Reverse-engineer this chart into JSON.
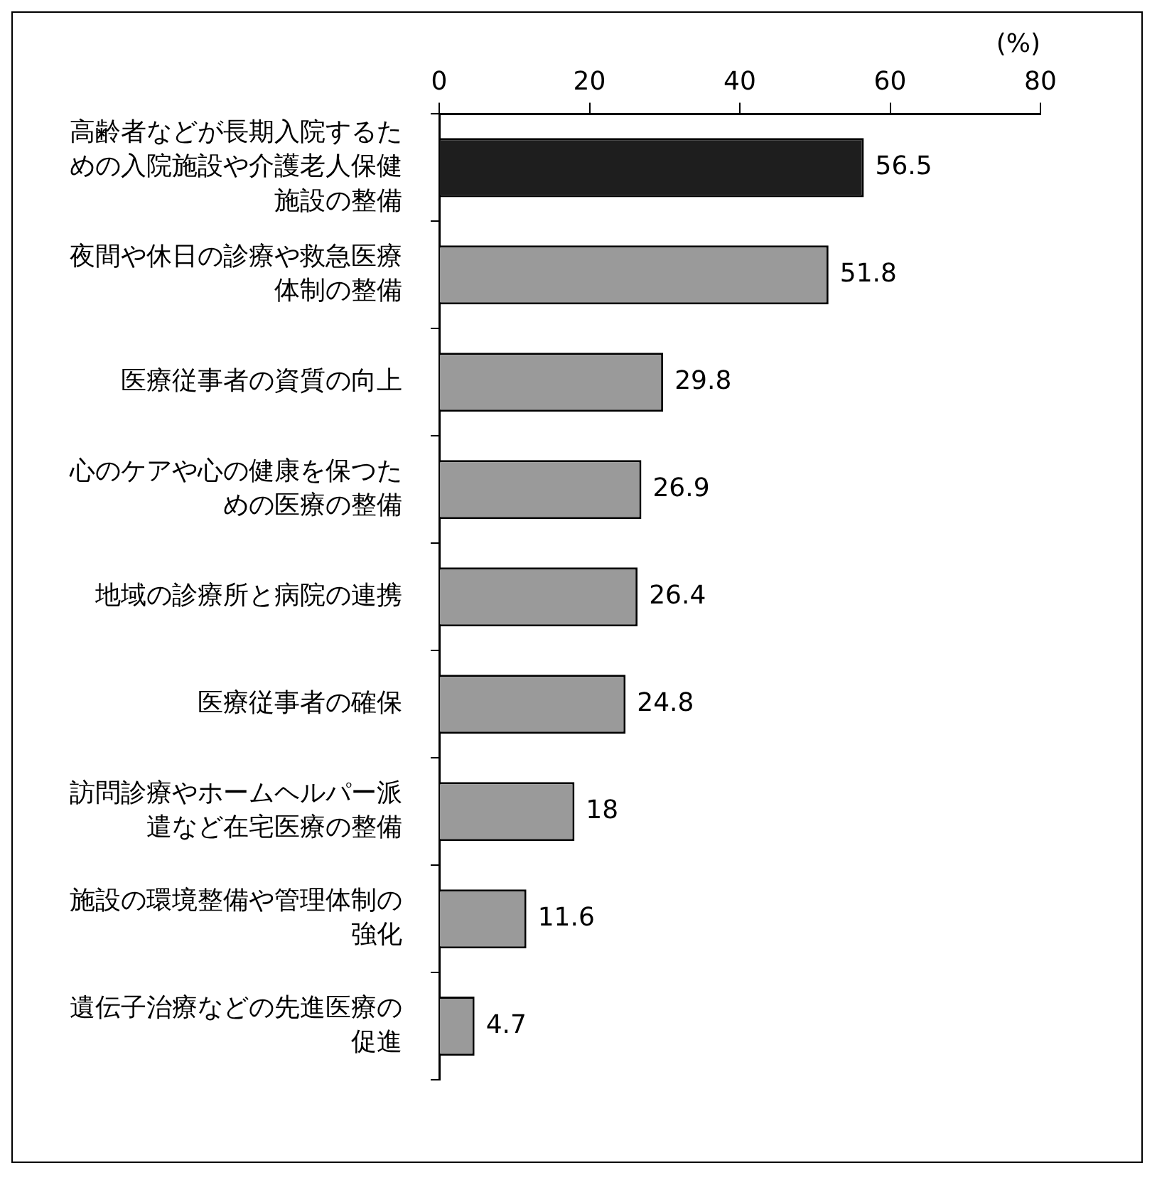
{
  "chart_data": {
    "type": "bar",
    "orientation": "horizontal",
    "categories": [
      "高齢者などが長期入院するための入院施設や介護老人保健施設の整備",
      "夜間や休日の診療や救急医療体制の整備",
      "医療従事者の資質の向上",
      "心のケアや心の健康を保つための医療の整備",
      "地域の診療所と病院の連携",
      "医療従事者の確保",
      "訪問診療やホームヘルパー派遣など在宅医療の整備",
      "施設の環境整備や管理体制の強化",
      "遺伝子治療などの先進医療の促進"
    ],
    "values": [
      56.5,
      51.8,
      29.8,
      26.9,
      26.4,
      24.8,
      18,
      11.6,
      4.7
    ],
    "colors": [
      "#1e1e1e",
      "#9a9a9a",
      "#9a9a9a",
      "#9a9a9a",
      "#9a9a9a",
      "#9a9a9a",
      "#9a9a9a",
      "#9a9a9a",
      "#9a9a9a"
    ],
    "xlabel": "(%)",
    "xlim": [
      0,
      80
    ],
    "xticks": [
      0,
      20,
      40,
      60,
      80
    ],
    "grid": false,
    "legend": false,
    "data_labels": true
  }
}
